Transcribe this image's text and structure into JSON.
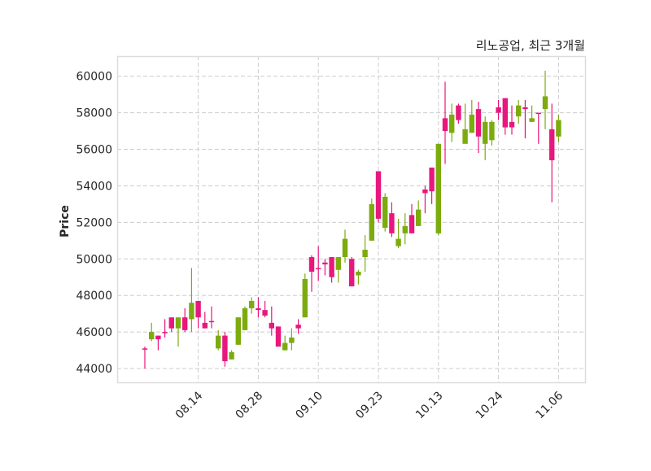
{
  "chart_data": {
    "type": "candlestick",
    "title": "리노공업, 최근 3개월",
    "xlabel": "",
    "ylabel": "Price",
    "ylim": [
      43200,
      61100
    ],
    "yticks": [
      44000,
      46000,
      48000,
      50000,
      52000,
      54000,
      56000,
      58000,
      60000
    ],
    "xticks": [
      {
        "index": 8,
        "label": "08.14"
      },
      {
        "index": 17,
        "label": "08.28"
      },
      {
        "index": 26,
        "label": "09.10"
      },
      {
        "index": 35,
        "label": "09.23"
      },
      {
        "index": 44,
        "label": "10.13"
      },
      {
        "index": 53,
        "label": "10.24"
      },
      {
        "index": 62,
        "label": "11.06"
      }
    ],
    "grid": true,
    "colors": {
      "up": "#7cab0e",
      "down": "#e8177d",
      "grid": "#cccccc",
      "frame": "#dddddd"
    },
    "candles": [
      [
        45100,
        45200,
        44000,
        45100
      ],
      [
        45600,
        46500,
        45500,
        46000
      ],
      [
        45800,
        45800,
        45000,
        45600
      ],
      [
        46000,
        46700,
        45700,
        46000
      ],
      [
        46800,
        46800,
        46000,
        46200
      ],
      [
        46200,
        46800,
        45200,
        46800
      ],
      [
        46800,
        47300,
        46000,
        46100
      ],
      [
        46700,
        49500,
        46000,
        47600
      ],
      [
        47700,
        47700,
        46200,
        46800
      ],
      [
        46500,
        47100,
        46200,
        46200
      ],
      [
        46600,
        47400,
        46200,
        46600
      ],
      [
        45100,
        46100,
        45000,
        45800
      ],
      [
        45800,
        46000,
        44100,
        44400
      ],
      [
        44500,
        45000,
        44500,
        44900
      ],
      [
        45300,
        46800,
        45300,
        46800
      ],
      [
        46100,
        47400,
        46100,
        47300
      ],
      [
        47300,
        47900,
        47000,
        47700
      ],
      [
        47300,
        47900,
        46800,
        47200
      ],
      [
        47200,
        47700,
        46800,
        46900
      ],
      [
        46500,
        47400,
        45800,
        46200
      ],
      [
        46300,
        46300,
        45200,
        45200
      ],
      [
        45000,
        45800,
        45000,
        45400
      ],
      [
        45400,
        46200,
        45000,
        45700
      ],
      [
        46400,
        46700,
        45900,
        46200
      ],
      [
        46800,
        49200,
        46800,
        48900
      ],
      [
        50100,
        50200,
        48200,
        49300
      ],
      [
        49500,
        50700,
        48800,
        49500
      ],
      [
        49800,
        50000,
        49100,
        49700
      ],
      [
        50100,
        50100,
        48700,
        49000
      ],
      [
        49400,
        50100,
        48700,
        50100
      ],
      [
        50100,
        51600,
        49800,
        51100
      ],
      [
        50000,
        50100,
        48500,
        48500
      ],
      [
        49100,
        49400,
        48600,
        49300
      ],
      [
        50100,
        51300,
        49300,
        50500
      ],
      [
        51000,
        53300,
        51000,
        53000
      ],
      [
        54800,
        54800,
        52000,
        52200
      ],
      [
        51700,
        53600,
        51500,
        53400
      ],
      [
        52500,
        53100,
        51200,
        51400
      ],
      [
        50700,
        52200,
        50600,
        51100
      ],
      [
        51400,
        52500,
        50800,
        51800
      ],
      [
        52400,
        53000,
        51400,
        51400
      ],
      [
        51800,
        53200,
        51800,
        52700
      ],
      [
        53800,
        54000,
        52500,
        53600
      ],
      [
        55000,
        55000,
        53000,
        53700
      ],
      [
        51400,
        56300,
        51300,
        56300
      ],
      [
        57700,
        59700,
        55200,
        57000
      ],
      [
        56900,
        58500,
        56400,
        57900
      ],
      [
        58400,
        58500,
        57400,
        57600
      ],
      [
        56300,
        58500,
        56300,
        57100
      ],
      [
        56900,
        58700,
        56900,
        57900
      ],
      [
        58200,
        58600,
        55800,
        56700
      ],
      [
        56300,
        57800,
        55400,
        57500
      ],
      [
        56500,
        57600,
        56200,
        57500
      ],
      [
        58300,
        58700,
        57600,
        58000
      ],
      [
        58800,
        58800,
        56800,
        57200
      ],
      [
        57500,
        58400,
        56800,
        57200
      ],
      [
        57800,
        58700,
        57400,
        58400
      ],
      [
        58300,
        58700,
        56600,
        58200
      ],
      [
        57500,
        58400,
        57500,
        57700
      ],
      [
        58000,
        58000,
        56300,
        58000
      ],
      [
        58200,
        60300,
        57100,
        58900
      ],
      [
        57100,
        58500,
        53100,
        55400
      ],
      [
        56700,
        57900,
        56400,
        57600
      ]
    ]
  }
}
